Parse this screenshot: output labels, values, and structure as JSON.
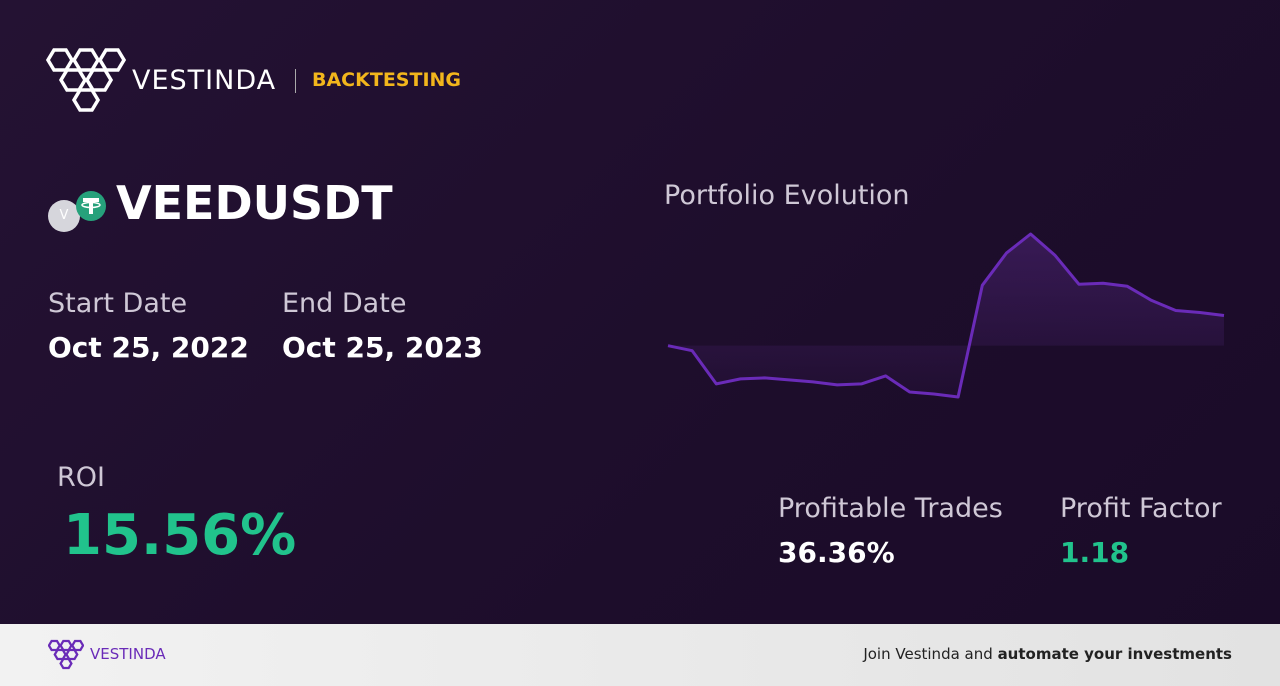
{
  "header": {
    "brand": "VESTINDA",
    "tag": "BACKTESTING"
  },
  "asset": {
    "icon_letter": "V",
    "symbol": "VEEDUSDT"
  },
  "dates": {
    "start_label": "Start Date",
    "start_value": "Oct 25, 2022",
    "end_label": "End Date",
    "end_value": "Oct 25, 2023"
  },
  "roi": {
    "label": "ROI",
    "value": "15.56%"
  },
  "stats": {
    "trades_label": "Profitable Trades",
    "trades_value": "36.36%",
    "factor_label": "Profit Factor",
    "factor_value": "1.18"
  },
  "chart_data": {
    "type": "line",
    "title": "Portfolio Evolution",
    "color": "#6a2bb8",
    "values": [
      55,
      50,
      17,
      22,
      23,
      21,
      19,
      16,
      17,
      25,
      9,
      7,
      4,
      115,
      147,
      166,
      145,
      116,
      117,
      114,
      100,
      90,
      88,
      85
    ]
  },
  "footer": {
    "brand": "VESTINDA",
    "text": "Join Vestinda and",
    "bold": "automate your investments"
  }
}
